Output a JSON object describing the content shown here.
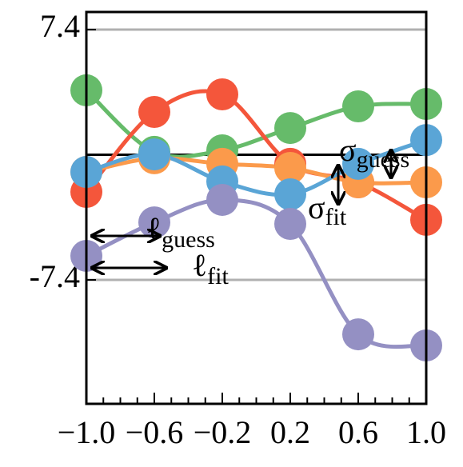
{
  "chart_data": {
    "type": "line",
    "x": [
      -1.0,
      -0.6,
      -0.2,
      0.2,
      0.6,
      1.0
    ],
    "series": [
      {
        "color": "#66bb6a",
        "values": [
          3.81,
          0.17,
          0.26,
          1.58,
          2.86,
          3.0
        ]
      },
      {
        "color": "#f4563b",
        "values": [
          -2.2,
          2.53,
          3.57,
          -0.54,
          -1.63,
          -3.85
        ]
      },
      {
        "color": "#fb9a4b",
        "values": [
          -1.02,
          -0.21,
          -0.54,
          -0.78,
          -1.63,
          -1.63
        ]
      },
      {
        "color": "#5aa5d6",
        "values": [
          -1.02,
          0.02,
          -1.58,
          -2.34,
          -0.54,
          0.87
        ]
      },
      {
        "color": "#9490c3",
        "values": [
          -5.98,
          -4.0,
          -2.67,
          -4.09,
          -10.62,
          -11.28
        ]
      }
    ],
    "xlim": [
      -1.0,
      1.0
    ],
    "ylim": [
      -14.73,
      8.44
    ],
    "xticks": [
      {
        "value": -1.0,
        "label": "−1.0"
      },
      {
        "value": -0.6,
        "label": "−0.6"
      },
      {
        "value": -0.2,
        "label": "−0.2"
      },
      {
        "value": 0.2,
        "label": "0.2"
      },
      {
        "value": 0.6,
        "label": "0.6"
      },
      {
        "value": 1.0,
        "label": "1.0"
      }
    ],
    "xticks_minor": [
      -0.9,
      -0.8,
      -0.7,
      -0.5,
      -0.4,
      -0.3,
      -0.1,
      0,
      0.1,
      0.3,
      0.4,
      0.5,
      0.7,
      0.8,
      0.9
    ],
    "yticks": [
      {
        "value": -7.4,
        "label": "-7.4"
      },
      7.4
    ],
    "grid": true,
    "reference_line": 0,
    "annotations": [
      {
        "symbol": "σ",
        "subscript": "guess"
      },
      {
        "symbol": "σ",
        "subscript": "fit"
      },
      {
        "symbol": "ℓ",
        "subscript": "guess"
      },
      {
        "symbol": "ℓ",
        "subscript": "fit"
      }
    ]
  }
}
